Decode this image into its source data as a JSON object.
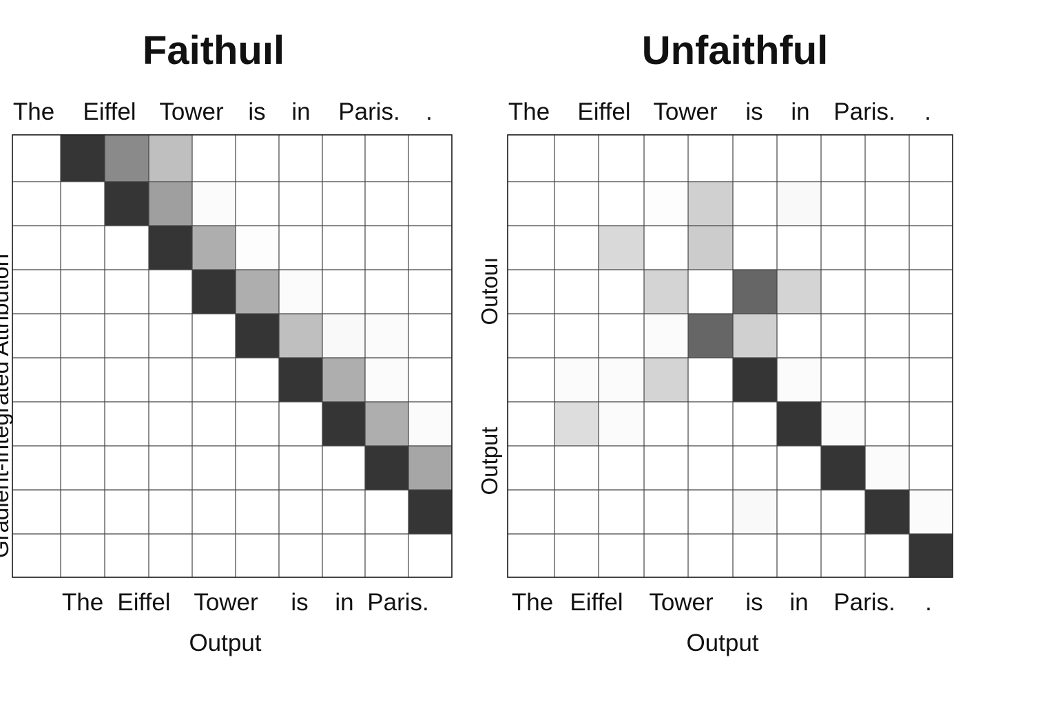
{
  "chart_data": [
    {
      "type": "heatmap",
      "title": "Faithuıl",
      "top_labels": [
        "The",
        "Eiffel",
        "Tower",
        "is",
        "in",
        "Paris.",
        "."
      ],
      "bottom_labels": [
        "The",
        "Eiffel",
        "Tower",
        "is",
        "in",
        "Paris."
      ],
      "xlabel": "Output",
      "ylabel": "Gradient-Integrated Attribution",
      "rows": 10,
      "cols": 10,
      "cells": [
        {
          "r": 0,
          "c": 1,
          "v": 0.95
        },
        {
          "r": 0,
          "c": 2,
          "v": 0.55
        },
        {
          "r": 0,
          "c": 3,
          "v": 0.3
        },
        {
          "r": 1,
          "c": 2,
          "v": 0.95
        },
        {
          "r": 1,
          "c": 3,
          "v": 0.45
        },
        {
          "r": 1,
          "c": 4,
          "v": 0.02
        },
        {
          "r": 2,
          "c": 3,
          "v": 0.95
        },
        {
          "r": 2,
          "c": 4,
          "v": 0.38
        },
        {
          "r": 2,
          "c": 5,
          "v": 0.01
        },
        {
          "r": 3,
          "c": 4,
          "v": 0.95
        },
        {
          "r": 3,
          "c": 5,
          "v": 0.38
        },
        {
          "r": 3,
          "c": 6,
          "v": 0.02
        },
        {
          "r": 4,
          "c": 5,
          "v": 0.95
        },
        {
          "r": 4,
          "c": 6,
          "v": 0.3
        },
        {
          "r": 4,
          "c": 7,
          "v": 0.03
        },
        {
          "r": 4,
          "c": 8,
          "v": 0.02
        },
        {
          "r": 5,
          "c": 6,
          "v": 0.95
        },
        {
          "r": 5,
          "c": 7,
          "v": 0.38
        },
        {
          "r": 5,
          "c": 8,
          "v": 0.02
        },
        {
          "r": 6,
          "c": 7,
          "v": 0.95
        },
        {
          "r": 6,
          "c": 8,
          "v": 0.38
        },
        {
          "r": 6,
          "c": 9,
          "v": 0.02
        },
        {
          "r": 7,
          "c": 8,
          "v": 0.95
        },
        {
          "r": 7,
          "c": 9,
          "v": 0.42
        },
        {
          "r": 8,
          "c": 9,
          "v": 0.95
        }
      ],
      "colors": {
        "high": "#2a2a2a",
        "low": "#ffffff",
        "grid": "#444444"
      }
    },
    {
      "type": "heatmap",
      "title": "Unfaithful",
      "top_labels": [
        "The",
        "Eiffel",
        "Tower",
        "is",
        "in",
        "Paris.",
        "."
      ],
      "bottom_labels": [
        "The",
        "Eiffel",
        "Tower",
        "is",
        "in",
        "Paris.",
        "."
      ],
      "xlabel": "Output",
      "ylabel": "Output",
      "ylabel_extra": "Outouı",
      "rows": 10,
      "cols": 10,
      "cells": [
        {
          "r": 1,
          "c": 4,
          "v": 0.22
        },
        {
          "r": 1,
          "c": 6,
          "v": 0.03
        },
        {
          "r": 1,
          "c": 3,
          "v": 0.01
        },
        {
          "r": 2,
          "c": 2,
          "v": 0.18
        },
        {
          "r": 2,
          "c": 4,
          "v": 0.24
        },
        {
          "r": 3,
          "c": 3,
          "v": 0.2
        },
        {
          "r": 3,
          "c": 5,
          "v": 0.72
        },
        {
          "r": 3,
          "c": 6,
          "v": 0.2
        },
        {
          "r": 4,
          "c": 3,
          "v": 0.02
        },
        {
          "r": 4,
          "c": 4,
          "v": 0.72
        },
        {
          "r": 4,
          "c": 5,
          "v": 0.22
        },
        {
          "r": 5,
          "c": 1,
          "v": 0.02
        },
        {
          "r": 5,
          "c": 2,
          "v": 0.02
        },
        {
          "r": 5,
          "c": 3,
          "v": 0.2
        },
        {
          "r": 5,
          "c": 5,
          "v": 0.95
        },
        {
          "r": 5,
          "c": 6,
          "v": 0.02
        },
        {
          "r": 6,
          "c": 1,
          "v": 0.16
        },
        {
          "r": 6,
          "c": 2,
          "v": 0.02
        },
        {
          "r": 6,
          "c": 6,
          "v": 0.95
        },
        {
          "r": 6,
          "c": 7,
          "v": 0.02
        },
        {
          "r": 7,
          "c": 7,
          "v": 0.95
        },
        {
          "r": 7,
          "c": 8,
          "v": 0.02
        },
        {
          "r": 8,
          "c": 5,
          "v": 0.03
        },
        {
          "r": 8,
          "c": 8,
          "v": 0.95
        },
        {
          "r": 8,
          "c": 9,
          "v": 0.02
        },
        {
          "r": 9,
          "c": 9,
          "v": 0.95
        }
      ],
      "colors": {
        "high": "#2a2a2a",
        "low": "#ffffff",
        "grid": "#444444"
      }
    }
  ]
}
